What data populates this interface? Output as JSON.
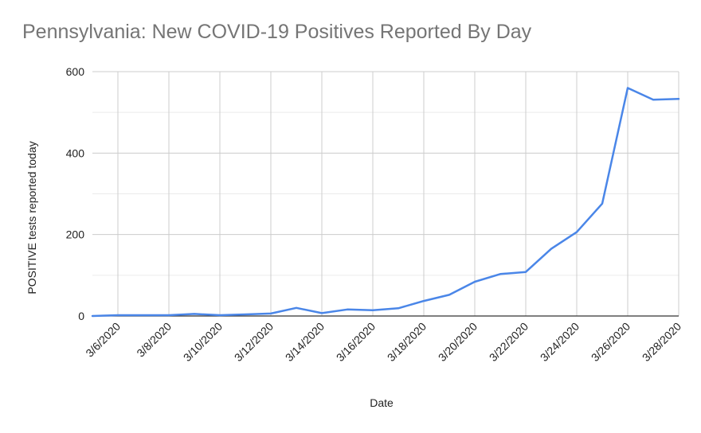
{
  "chart_data": {
    "type": "line",
    "title": "Pennsylvania: New COVID-19 Positives Reported By Day",
    "xlabel": "Date",
    "ylabel": "POSITIVE tests reported today",
    "ylim": [
      0,
      600
    ],
    "y_ticks": [
      0,
      200,
      400,
      600
    ],
    "x": [
      "3/5/2020",
      "3/6/2020",
      "3/7/2020",
      "3/8/2020",
      "3/9/2020",
      "3/10/2020",
      "3/11/2020",
      "3/12/2020",
      "3/13/2020",
      "3/14/2020",
      "3/15/2020",
      "3/16/2020",
      "3/17/2020",
      "3/18/2020",
      "3/19/2020",
      "3/20/2020",
      "3/21/2020",
      "3/22/2020",
      "3/23/2020",
      "3/24/2020",
      "3/25/2020",
      "3/26/2020",
      "3/27/2020",
      "3/28/2020"
    ],
    "x_tick_labels": [
      "3/6/2020",
      "3/8/2020",
      "3/10/2020",
      "3/12/2020",
      "3/14/2020",
      "3/16/2020",
      "3/18/2020",
      "3/20/2020",
      "3/22/2020",
      "3/24/2020",
      "3/26/2020",
      "3/28/2020"
    ],
    "series": [
      {
        "color": "#4a86e8",
        "values": [
          0,
          2,
          2,
          2,
          5,
          2,
          4,
          6,
          20,
          7,
          16,
          14,
          19,
          37,
          52,
          84,
          103,
          108,
          165,
          206,
          276,
          560,
          531,
          533
        ]
      }
    ],
    "grid": true,
    "legend": "none"
  }
}
